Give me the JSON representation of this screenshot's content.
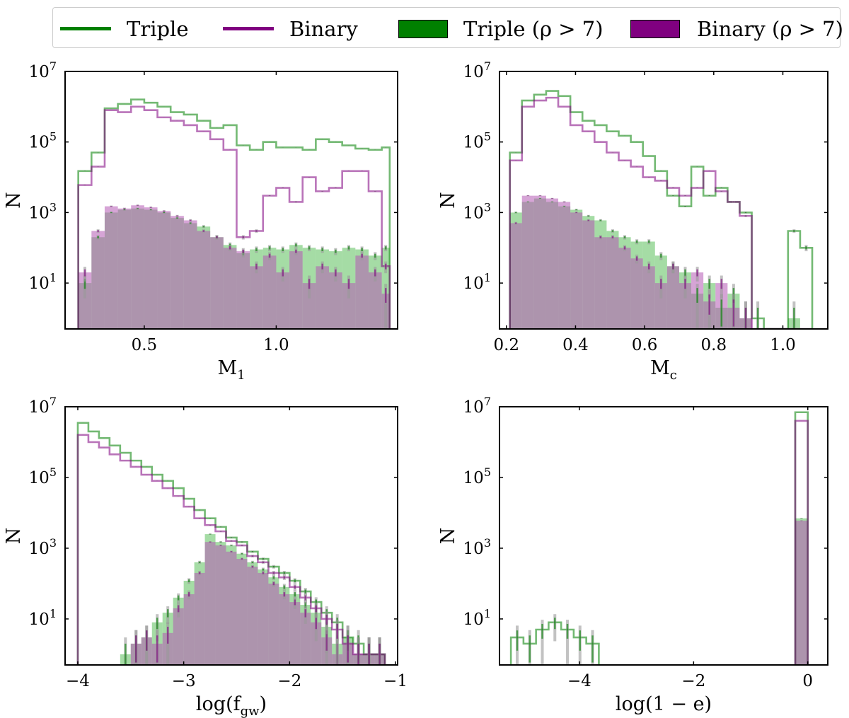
{
  "legend": {
    "items": [
      {
        "kind": "line",
        "label": "Triple",
        "color": "#008000"
      },
      {
        "kind": "line",
        "label": "Binary",
        "color": "#800080"
      },
      {
        "kind": "box",
        "label": "Triple (ρ > 7)",
        "label_main": "Triple",
        "label_math": "(ρ > 7)",
        "color": "#008000"
      },
      {
        "kind": "box",
        "label": "Binary (ρ > 7)",
        "label_main": "Binary",
        "label_math": "(ρ > 7)",
        "color": "#800080"
      }
    ]
  },
  "colors": {
    "triple": "#008000",
    "binary": "#800080",
    "triple_fill": "#5bbf5b",
    "binary_fill": "#b45ab4",
    "overlap": "#5a7a5a",
    "errorbar": "#9a9a9a"
  },
  "chart_data": [
    {
      "type": "bar",
      "panel": "M1",
      "xlabel": "M",
      "xlabel_sub": "1",
      "ylabel": "N",
      "yscale": "log",
      "ylim": [
        0.5,
        10000000
      ],
      "xlim": [
        0.2,
        1.46
      ],
      "xticks": [
        {
          "v": 0.5,
          "label": "0.5"
        },
        {
          "v": 1.0,
          "label": "1.0"
        }
      ],
      "yticks": [
        {
          "v": 10,
          "label": "10",
          "exp": "1"
        },
        {
          "v": 1000,
          "label": "10",
          "exp": "3"
        },
        {
          "v": 100000,
          "label": "10",
          "exp": "5"
        },
        {
          "v": 10000000,
          "label": "10",
          "exp": "7"
        }
      ],
      "series": [
        {
          "name": "Triple",
          "style": "step",
          "edges": [
            0.25,
            0.3,
            0.35,
            0.4,
            0.45,
            0.5,
            0.55,
            0.6,
            0.65,
            0.7,
            0.75,
            0.8,
            0.85,
            0.9,
            0.95,
            1.0,
            1.05,
            1.1,
            1.15,
            1.2,
            1.25,
            1.3,
            1.35,
            1.4,
            1.43
          ],
          "values": [
            15000,
            50000,
            900000,
            1200000,
            1600000,
            1300000,
            1000000,
            700000,
            600000,
            400000,
            250000,
            300000,
            80000,
            60000,
            100000,
            70000,
            70000,
            60000,
            120000,
            100000,
            80000,
            65000,
            60000,
            70000
          ]
        },
        {
          "name": "Binary",
          "style": "step",
          "edges": [
            0.25,
            0.3,
            0.35,
            0.4,
            0.45,
            0.5,
            0.55,
            0.6,
            0.65,
            0.7,
            0.75,
            0.8,
            0.85,
            0.9,
            0.95,
            1.0,
            1.05,
            1.1,
            1.15,
            1.2,
            1.25,
            1.3,
            1.35,
            1.4,
            1.43
          ],
          "values": [
            6000,
            20000,
            800000,
            700000,
            1000000,
            800000,
            500000,
            400000,
            300000,
            200000,
            120000,
            60000,
            200,
            300,
            3000,
            5000,
            2000,
            10000,
            4000,
            5000,
            15000,
            15000,
            4000,
            30
          ]
        },
        {
          "name": "Triple (ρ > 7)",
          "style": "filled",
          "edges": [
            0.25,
            0.3,
            0.35,
            0.4,
            0.45,
            0.5,
            0.55,
            0.6,
            0.65,
            0.7,
            0.75,
            0.8,
            0.85,
            0.9,
            0.95,
            1.0,
            1.05,
            1.1,
            1.15,
            1.2,
            1.25,
            1.3,
            1.35,
            1.4,
            1.43
          ],
          "values": [
            10,
            200,
            1000,
            1200,
            1300,
            1200,
            1000,
            700,
            500,
            400,
            200,
            120,
            70,
            90,
            100,
            90,
            120,
            100,
            90,
            80,
            100,
            90,
            60,
            100
          ]
        },
        {
          "name": "Binary (ρ > 7)",
          "style": "filled",
          "edges": [
            0.25,
            0.3,
            0.35,
            0.4,
            0.45,
            0.5,
            0.55,
            0.6,
            0.65,
            0.7,
            0.75,
            0.8,
            0.85,
            0.9,
            0.95,
            1.0,
            1.05,
            1.1,
            1.15,
            1.2,
            1.25,
            1.3,
            1.35,
            1.4,
            1.43
          ],
          "values": [
            20,
            300,
            1500,
            1300,
            1600,
            1400,
            1100,
            800,
            600,
            300,
            200,
            100,
            80,
            30,
            60,
            20,
            80,
            10,
            30,
            20,
            10,
            60,
            20,
            5
          ]
        }
      ]
    },
    {
      "type": "bar",
      "panel": "Mc",
      "xlabel": "M",
      "xlabel_sub": "c",
      "ylabel": "N",
      "yscale": "log",
      "ylim": [
        0.5,
        10000000
      ],
      "xlim": [
        0.18,
        1.13
      ],
      "xticks": [
        {
          "v": 0.2,
          "label": "0.2"
        },
        {
          "v": 0.4,
          "label": "0.4"
        },
        {
          "v": 0.6,
          "label": "0.6"
        },
        {
          "v": 0.8,
          "label": "0.8"
        },
        {
          "v": 1.0,
          "label": "1.0"
        }
      ],
      "yticks": [
        {
          "v": 10,
          "label": "10",
          "exp": "1"
        },
        {
          "v": 1000,
          "label": "10",
          "exp": "3"
        },
        {
          "v": 100000,
          "label": "10",
          "exp": "5"
        },
        {
          "v": 10000000,
          "label": "10",
          "exp": "7"
        }
      ],
      "series": [
        {
          "name": "Triple",
          "style": "step",
          "edges": [
            0.21,
            0.245,
            0.28,
            0.315,
            0.35,
            0.385,
            0.42,
            0.455,
            0.49,
            0.525,
            0.56,
            0.595,
            0.63,
            0.665,
            0.7,
            0.735,
            0.77,
            0.805,
            0.84,
            0.875,
            0.91,
            0.945,
            0.98,
            1.015,
            1.05,
            1.085
          ],
          "values": [
            50000,
            1500000,
            2200000,
            2800000,
            2000000,
            700000,
            400000,
            300000,
            200000,
            150000,
            100000,
            40000,
            15000,
            3000,
            1500,
            20000,
            3000,
            5000,
            2000,
            1000,
            1,
            0.3,
            0.3,
            300,
            100
          ]
        },
        {
          "name": "Binary",
          "style": "step",
          "edges": [
            0.21,
            0.245,
            0.28,
            0.315,
            0.35,
            0.385,
            0.42,
            0.455,
            0.49,
            0.525,
            0.56,
            0.595,
            0.63,
            0.665,
            0.7,
            0.735,
            0.77,
            0.805,
            0.84,
            0.875,
            0.91,
            0.945,
            0.98,
            1.015,
            1.05,
            1.085
          ],
          "values": [
            30000,
            1000000,
            1500000,
            1800000,
            1000000,
            300000,
            200000,
            100000,
            50000,
            30000,
            20000,
            10000,
            8000,
            5000,
            3000,
            5000,
            15000,
            4000,
            2000,
            800,
            0.3,
            0.3,
            0.3,
            0.3,
            0.3
          ]
        },
        {
          "name": "Triple (ρ > 7)",
          "style": "filled",
          "edges": [
            0.21,
            0.245,
            0.28,
            0.315,
            0.35,
            0.385,
            0.42,
            0.455,
            0.49,
            0.525,
            0.56,
            0.595,
            0.63,
            0.665,
            0.7,
            0.735,
            0.77,
            0.805,
            0.84,
            0.875,
            0.91,
            0.945,
            0.98,
            1.015,
            1.05,
            1.085
          ],
          "values": [
            1000,
            2000,
            2500,
            2000,
            1500,
            1200,
            800,
            600,
            300,
            200,
            150,
            150,
            60,
            30,
            20,
            5,
            10,
            2,
            5,
            1,
            0.3,
            0.3,
            0.3,
            1,
            0.3
          ]
        },
        {
          "name": "Binary (ρ > 7)",
          "style": "filled",
          "edges": [
            0.21,
            0.245,
            0.28,
            0.315,
            0.35,
            0.385,
            0.42,
            0.455,
            0.49,
            0.525,
            0.56,
            0.595,
            0.63,
            0.665,
            0.7,
            0.735,
            0.77,
            0.805,
            0.84,
            0.875,
            0.91,
            0.945,
            0.98,
            1.015,
            1.05,
            1.085
          ],
          "values": [
            500,
            3000,
            3000,
            2500,
            2000,
            1000,
            600,
            200,
            200,
            100,
            50,
            30,
            10,
            30,
            10,
            20,
            3,
            10,
            2,
            1,
            0.3,
            0.3,
            0.3,
            0.3,
            0.3
          ]
        }
      ]
    },
    {
      "type": "bar",
      "panel": "fgw",
      "xlabel": "log(f",
      "xlabel_sub": "gw",
      "xlabel_end": ")",
      "ylabel": "N",
      "yscale": "log",
      "ylim": [
        0.5,
        10000000
      ],
      "xlim": [
        -4.12,
        -0.98
      ],
      "xticks": [
        {
          "v": -4,
          "label": "−4"
        },
        {
          "v": -3,
          "label": "−3"
        },
        {
          "v": -2,
          "label": "−2"
        },
        {
          "v": -1,
          "label": "−1"
        }
      ],
      "yticks": [
        {
          "v": 10,
          "label": "10",
          "exp": "1"
        },
        {
          "v": 1000,
          "label": "10",
          "exp": "3"
        },
        {
          "v": 100000,
          "label": "10",
          "exp": "5"
        },
        {
          "v": 10000000,
          "label": "10",
          "exp": "7"
        }
      ],
      "series": [
        {
          "name": "Triple",
          "style": "step",
          "edges": [
            -4.0,
            -3.9,
            -3.8,
            -3.7,
            -3.6,
            -3.5,
            -3.4,
            -3.3,
            -3.2,
            -3.1,
            -3.0,
            -2.9,
            -2.8,
            -2.7,
            -2.6,
            -2.5,
            -2.4,
            -2.3,
            -2.2,
            -2.1,
            -2.0,
            -1.9,
            -1.8,
            -1.7,
            -1.6,
            -1.5,
            -1.4,
            -1.3,
            -1.2,
            -1.1
          ],
          "values": [
            3500000,
            2000000,
            1300000,
            800000,
            500000,
            300000,
            200000,
            120000,
            80000,
            50000,
            25000,
            12000,
            7000,
            4000,
            2000,
            1500,
            800,
            500,
            300,
            200,
            120,
            60,
            30,
            15,
            8,
            3,
            2,
            1,
            1
          ]
        },
        {
          "name": "Binary",
          "style": "step",
          "edges": [
            -4.0,
            -3.9,
            -3.8,
            -3.7,
            -3.6,
            -3.5,
            -3.4,
            -3.3,
            -3.2,
            -3.1,
            -3.0,
            -2.9,
            -2.8,
            -2.7,
            -2.6,
            -2.5,
            -2.4,
            -2.3,
            -2.2,
            -2.1,
            -2.0,
            -1.9,
            -1.8,
            -1.7,
            -1.6,
            -1.5,
            -1.4,
            -1.3,
            -1.2,
            -1.1
          ],
          "values": [
            1600000,
            1000000,
            700000,
            450000,
            300000,
            200000,
            120000,
            80000,
            50000,
            30000,
            15000,
            7000,
            4500,
            3000,
            1600,
            1200,
            600,
            400,
            200,
            150,
            80,
            40,
            20,
            10,
            5,
            2,
            1,
            1,
            1
          ]
        },
        {
          "name": "Triple (ρ > 7)",
          "style": "filled",
          "edges": [
            -3.6,
            -3.5,
            -3.4,
            -3.3,
            -3.2,
            -3.1,
            -3.0,
            -2.9,
            -2.8,
            -2.7,
            -2.6,
            -2.5,
            -2.4,
            -2.3,
            -2.2,
            -2.1,
            -2.0,
            -1.9,
            -1.8,
            -1.7,
            -1.6,
            -1.5,
            -1.4,
            -1.3,
            -1.2,
            -1.1
          ],
          "values": [
            1,
            2,
            3,
            8,
            15,
            40,
            120,
            400,
            2500,
            1500,
            1200,
            700,
            400,
            250,
            150,
            80,
            50,
            25,
            15,
            6,
            2,
            3,
            1,
            1,
            1
          ]
        },
        {
          "name": "Binary (ρ > 7)",
          "style": "filled",
          "edges": [
            -3.6,
            -3.5,
            -3.4,
            -3.3,
            -3.2,
            -3.1,
            -3.0,
            -2.9,
            -2.8,
            -2.7,
            -2.6,
            -2.5,
            -2.4,
            -2.3,
            -2.2,
            -2.1,
            -2.0,
            -1.9,
            -1.8,
            -1.7,
            -1.6,
            -1.5,
            -1.4,
            -1.3,
            -1.2,
            -1.1
          ],
          "values": [
            0.3,
            2,
            3,
            2,
            4,
            20,
            50,
            200,
            1500,
            1200,
            800,
            500,
            300,
            200,
            100,
            50,
            30,
            15,
            8,
            3,
            1,
            2,
            1,
            1,
            1
          ]
        }
      ]
    },
    {
      "type": "bar",
      "panel": "ecc",
      "xlabel": "log(1 − e)",
      "ylabel": "N",
      "yscale": "log",
      "ylim": [
        0.5,
        10000000
      ],
      "xlim": [
        -5.4,
        0.35
      ],
      "xticks": [
        {
          "v": -4,
          "label": "−4"
        },
        {
          "v": -2,
          "label": "−2"
        },
        {
          "v": 0,
          "label": "0"
        }
      ],
      "yticks": [
        {
          "v": 10,
          "label": "10",
          "exp": "1"
        },
        {
          "v": 1000,
          "label": "10",
          "exp": "3"
        },
        {
          "v": 100000,
          "label": "10",
          "exp": "5"
        },
        {
          "v": 10000000,
          "label": "10",
          "exp": "7"
        }
      ],
      "series": [
        {
          "name": "Triple",
          "style": "step",
          "edges": [
            -5.2,
            -4.98,
            -4.76,
            -4.54,
            -4.32,
            -4.1,
            -3.88,
            -3.66
          ],
          "values": [
            3,
            2,
            5,
            8,
            5,
            3,
            2
          ]
        },
        {
          "name": "Triple",
          "style": "step",
          "edges": [
            -0.22,
            0.0
          ],
          "values": [
            7000000
          ]
        },
        {
          "name": "Binary",
          "style": "step",
          "edges": [
            -0.22,
            0.0
          ],
          "values": [
            4000000
          ]
        },
        {
          "name": "Triple (ρ > 7)",
          "style": "filled",
          "edges": [
            -0.22,
            0.0
          ],
          "values": [
            7000
          ]
        },
        {
          "name": "Binary (ρ > 7)",
          "style": "filled",
          "edges": [
            -0.22,
            0.0
          ],
          "values": [
            6000
          ]
        }
      ]
    }
  ]
}
